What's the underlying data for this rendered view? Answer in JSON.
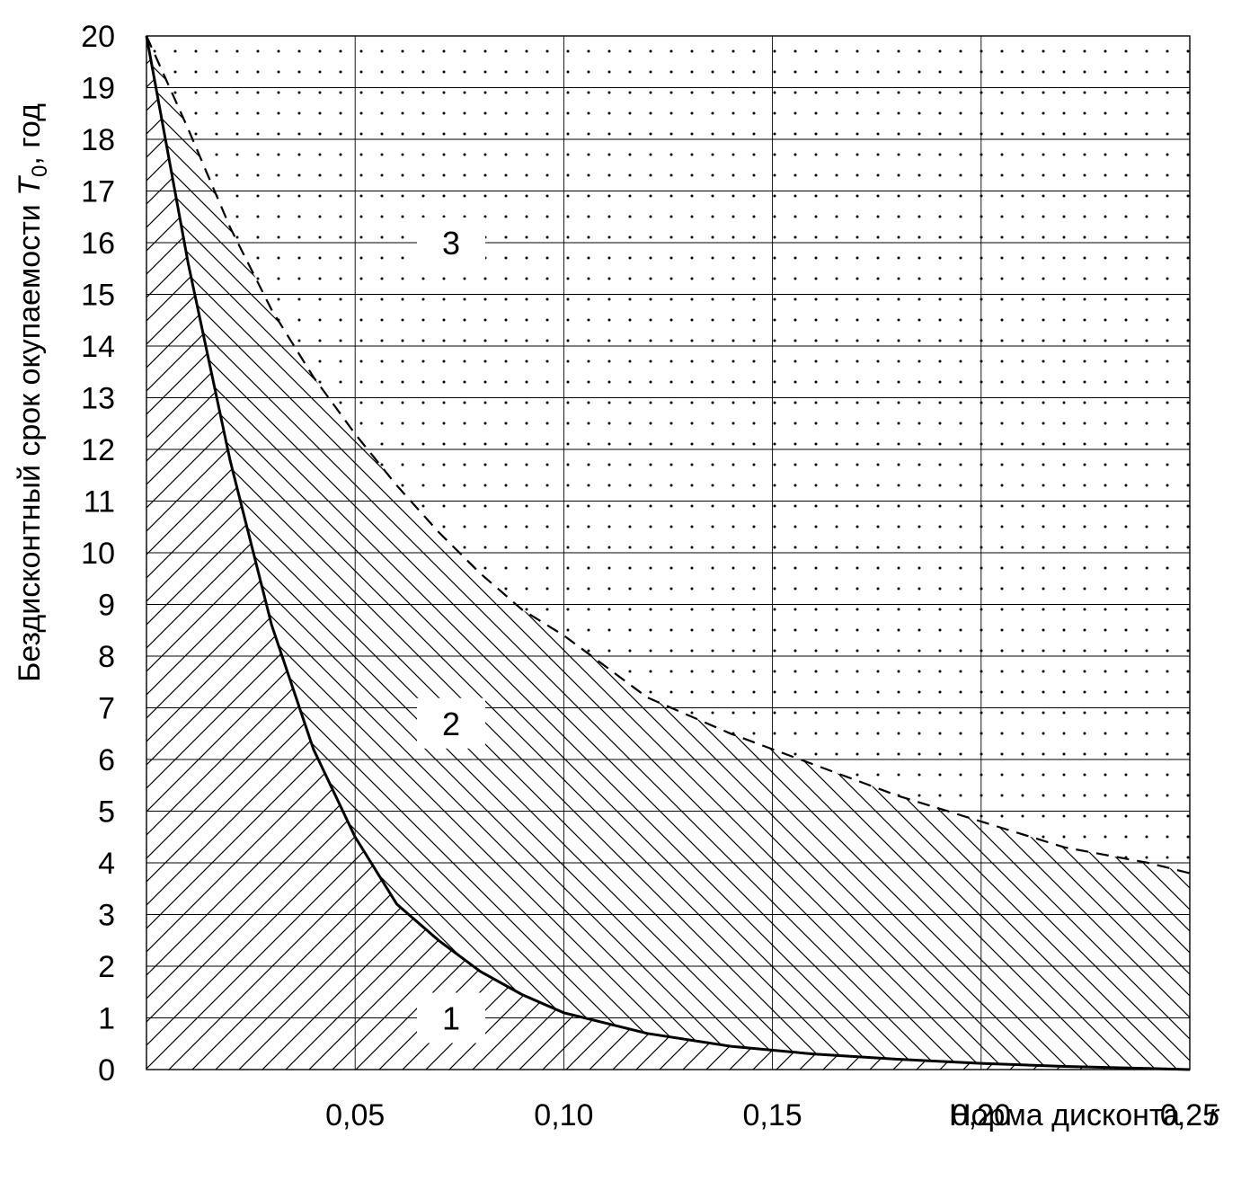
{
  "chart_data": {
    "type": "line",
    "title": "",
    "xlabel": "Норма дисконта",
    "xlabel_symbol": "r",
    "ylabel": "Бездисконтный срок окупаемости",
    "ylabel_symbol": "T",
    "ylabel_subscript": "0",
    "ylabel_unit": ", год",
    "xlim": [
      0,
      0.25
    ],
    "ylim": [
      0,
      20
    ],
    "grid": true,
    "x_ticks": [
      0.05,
      0.1,
      0.15,
      0.2,
      0.25
    ],
    "x_tick_labels": [
      "0,05",
      "0,10",
      "0,15",
      "0,20",
      "0,25"
    ],
    "y_ticks": [
      0,
      1,
      2,
      3,
      4,
      5,
      6,
      7,
      8,
      9,
      10,
      11,
      12,
      13,
      14,
      15,
      16,
      17,
      18,
      19,
      20
    ],
    "y_tick_labels": [
      "0",
      "1",
      "2",
      "3",
      "4",
      "5",
      "6",
      "7",
      "8",
      "9",
      "10",
      "11",
      "12",
      "13",
      "14",
      "15",
      "16",
      "17",
      "18",
      "19",
      "20"
    ],
    "series": [
      {
        "style": "solid",
        "x": [
          0,
          0.01,
          0.02,
          0.03,
          0.04,
          0.05,
          0.06,
          0.07,
          0.08,
          0.09,
          0.1,
          0.12,
          0.14,
          0.16,
          0.18,
          0.2,
          0.22,
          0.24,
          0.25
        ],
        "y": [
          20,
          15.6,
          11.8,
          8.6,
          6.2,
          4.5,
          3.2,
          2.5,
          1.9,
          1.45,
          1.1,
          0.7,
          0.45,
          0.3,
          0.2,
          0.12,
          0.06,
          0.02,
          0.0
        ]
      },
      {
        "style": "dashed",
        "x": [
          0,
          0.01,
          0.02,
          0.03,
          0.04,
          0.05,
          0.06,
          0.07,
          0.08,
          0.09,
          0.1,
          0.12,
          0.14,
          0.16,
          0.18,
          0.2,
          0.22,
          0.24,
          0.25
        ],
        "y": [
          20,
          18.2,
          16.3,
          14.7,
          13.4,
          12.3,
          11.3,
          10.4,
          9.6,
          8.9,
          8.4,
          7.2,
          6.5,
          5.9,
          5.3,
          4.8,
          4.3,
          4.0,
          3.8
        ]
      }
    ],
    "regions": [
      {
        "label": "1",
        "x": 0.073,
        "y": 1.0
      },
      {
        "label": "2",
        "x": 0.073,
        "y": 6.7
      },
      {
        "label": "3",
        "x": 0.073,
        "y": 16.0
      }
    ]
  }
}
